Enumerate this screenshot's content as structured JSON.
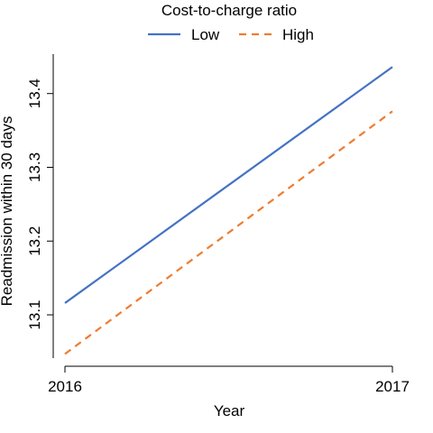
{
  "chart_data": {
    "type": "line",
    "xlabel": "Year",
    "ylabel": "Readmission within 30 days",
    "x": [
      2016,
      2017
    ],
    "x_tick_labels": [
      "2016",
      "2017"
    ],
    "y_ticks": [
      13.1,
      13.2,
      13.3,
      13.4
    ],
    "y_tick_labels": [
      "13.1",
      "13.2",
      "13.3",
      "13.4"
    ],
    "ylim": [
      13.045,
      13.44
    ],
    "grid": false,
    "legend": {
      "title": "Cost-to-charge ratio",
      "position": "top"
    },
    "series": [
      {
        "name": "Low",
        "values": [
          13.116,
          13.436
        ],
        "color": "#4472C4",
        "style": "solid"
      },
      {
        "name": "High",
        "values": [
          13.047,
          13.376
        ],
        "color": "#ED7D31",
        "style": "dashed"
      }
    ]
  }
}
